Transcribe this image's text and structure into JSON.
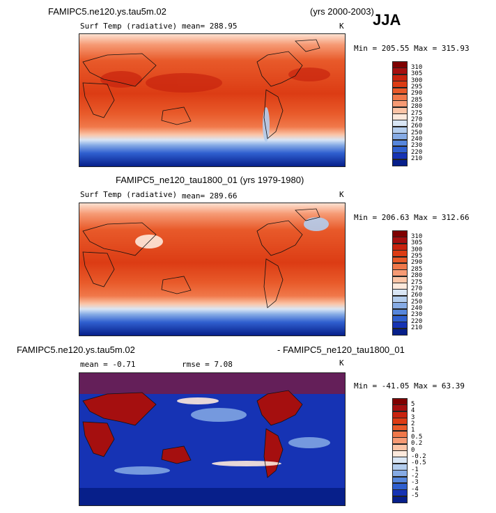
{
  "header": {
    "title_left": "FAMIPC5.ne120.ys.tau5m.02",
    "years_right": "(yrs 2000-2003)",
    "season": "JJA"
  },
  "panels": [
    {
      "variable": "Surf Temp (radiative)",
      "mean": "mean= 288.95",
      "units": "K",
      "minmax": "Min = 205.55 Max = 315.93",
      "kind": "abs"
    },
    {
      "title": "FAMIPC5_ne120_tau1800_01 (yrs 1979-1980)",
      "variable": "Surf Temp (radiative)",
      "mean": "mean= 289.66",
      "units": "K",
      "minmax": "Min = 206.63 Max = 312.66",
      "kind": "abs"
    },
    {
      "title_left": "FAMIPC5.ne120.ys.tau5m.02",
      "title_right": "- FAMIPC5_ne120_tau1800_01",
      "mean": "mean =   -0.71",
      "rmse": "rmse =    7.08",
      "units": "K",
      "minmax": "Min = -41.05 Max =  63.39",
      "kind": "diff"
    }
  ],
  "colorbar_abs": {
    "labels": [
      "310",
      "305",
      "300",
      "295",
      "290",
      "285",
      "280",
      "275",
      "270",
      "260",
      "250",
      "240",
      "230",
      "220",
      "210"
    ],
    "colors": [
      "#7f0000",
      "#a50f0f",
      "#c8230e",
      "#dc3c14",
      "#e85a2a",
      "#f0784a",
      "#f69a74",
      "#fbc4a6",
      "#fde9dc",
      "#d9e6f5",
      "#b3cdee",
      "#86abe5",
      "#5686dc",
      "#2f5fcf",
      "#1633b4",
      "#071f8a"
    ]
  },
  "colorbar_diff": {
    "labels": [
      "5",
      "4",
      "3",
      "2",
      "1",
      "0.5",
      "0.2",
      "0",
      "-0.2",
      "-0.5",
      "-1",
      "-2",
      "-3",
      "-4",
      "-5"
    ],
    "colors": [
      "#7f0000",
      "#a50f0f",
      "#c8230e",
      "#dc3c14",
      "#e85a2a",
      "#f0784a",
      "#f69a74",
      "#fbc4a6",
      "#fde9dc",
      "#d9e6f5",
      "#b3cdee",
      "#86abe5",
      "#5686dc",
      "#2f5fcf",
      "#1633b4",
      "#071f8a"
    ]
  }
}
